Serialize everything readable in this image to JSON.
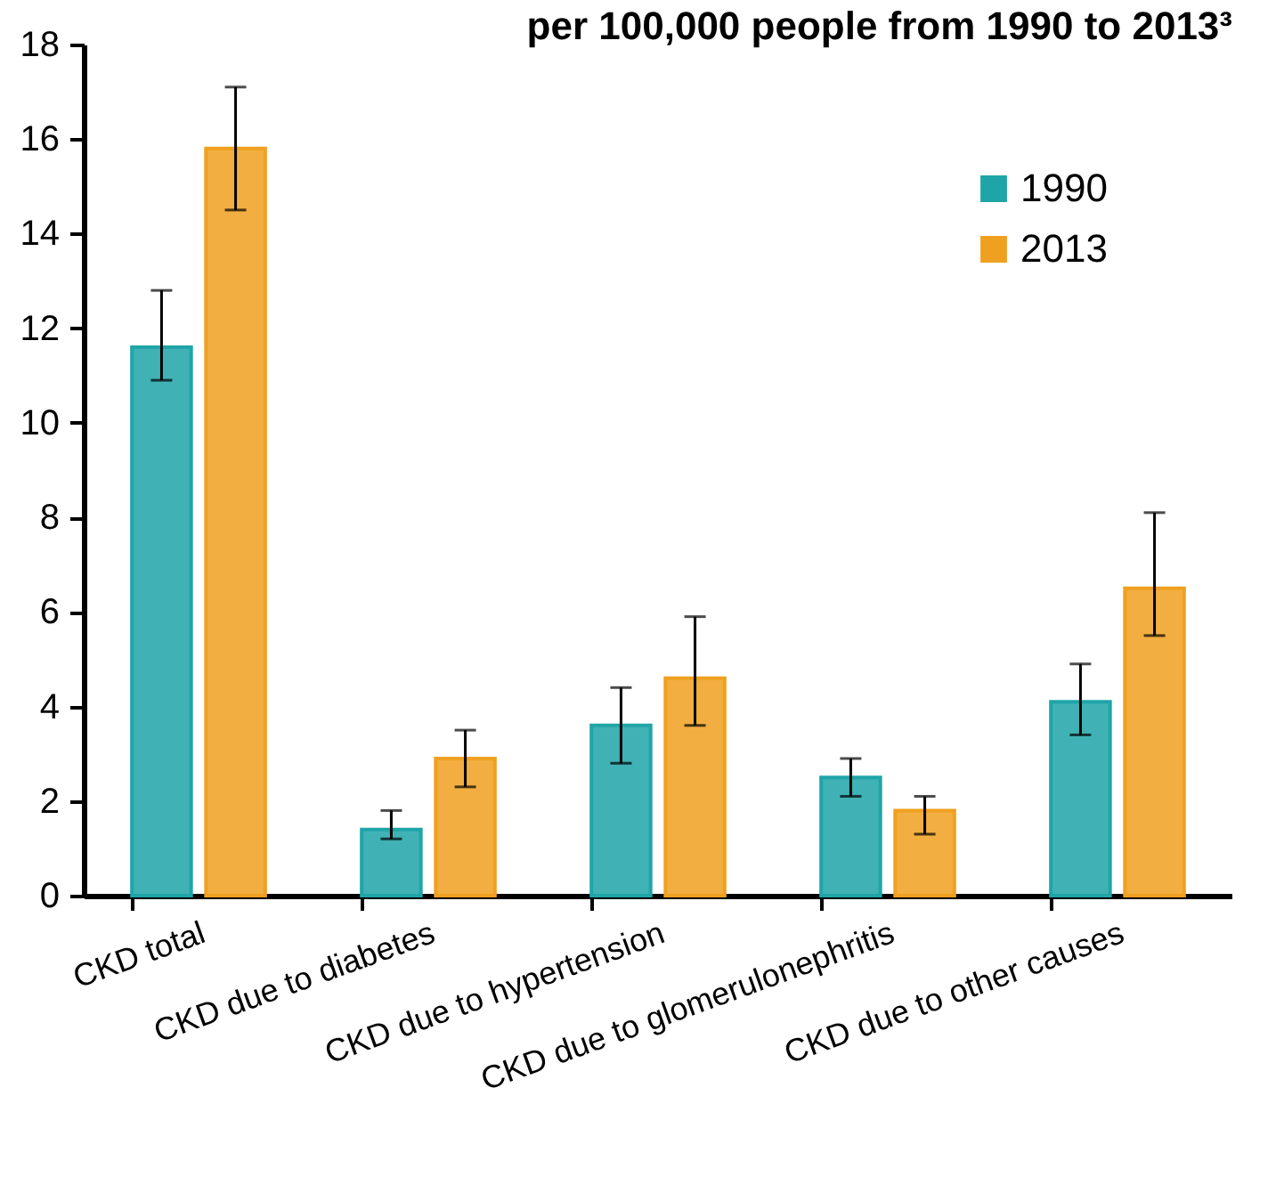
{
  "chart_data": {
    "type": "bar",
    "title": "per 100,000 people from 1990 to 2013³",
    "categories": [
      "CKD total",
      "CKD due to diabetes",
      "CKD due to hypertension",
      "CKD due to glomerulonephritis",
      "CKD due to other causes"
    ],
    "series": [
      {
        "name": "1990",
        "color": "#1fa5a8",
        "values": [
          11.6,
          1.4,
          3.6,
          2.5,
          4.1
        ],
        "errors": [
          [
            10.9,
            12.8
          ],
          [
            1.2,
            1.8
          ],
          [
            2.8,
            4.4
          ],
          [
            2.1,
            2.9
          ],
          [
            3.4,
            4.9
          ]
        ]
      },
      {
        "name": "2013",
        "color": "#f0a020",
        "values": [
          15.8,
          2.9,
          4.6,
          1.8,
          6.5
        ],
        "errors": [
          [
            14.5,
            17.1
          ],
          [
            2.3,
            3.5
          ],
          [
            3.6,
            5.9
          ],
          [
            1.3,
            2.1
          ],
          [
            5.5,
            8.1
          ]
        ]
      }
    ],
    "ylim": [
      0,
      18
    ],
    "yticks": [
      0,
      2,
      4,
      6,
      8,
      10,
      12,
      14,
      16,
      18
    ],
    "grid": false,
    "legend": "top right"
  }
}
